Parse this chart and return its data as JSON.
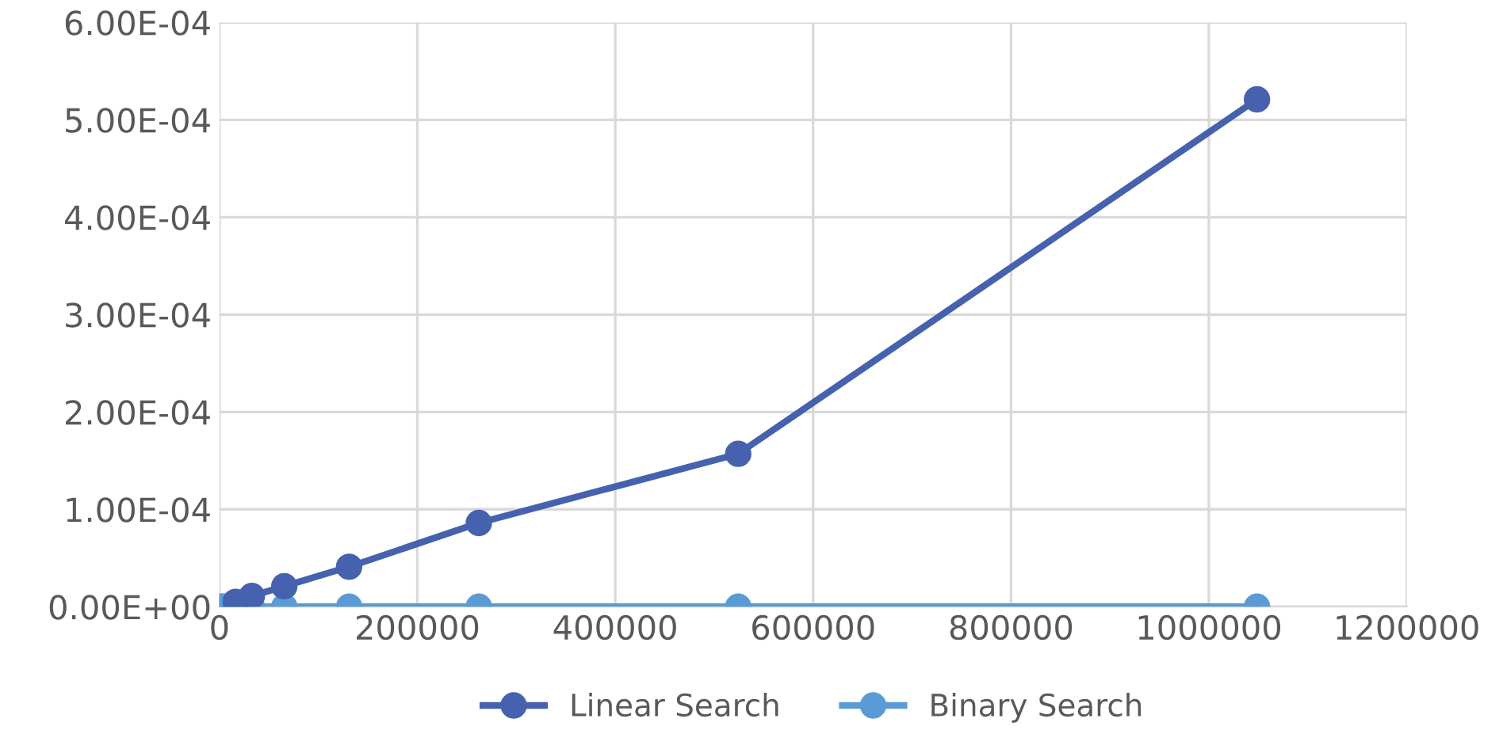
{
  "chart_data": {
    "type": "line",
    "x": [
      1024,
      2048,
      4096,
      8192,
      16384,
      32768,
      65536,
      131072,
      262144,
      524288,
      1048576
    ],
    "series": [
      {
        "name": "Linear Search",
        "color": "#4661ae",
        "values": [
          null,
          null,
          null,
          null,
          5e-06,
          1.1e-05,
          2.1e-05,
          4.1e-05,
          8.6e-05,
          0.000157,
          0.000521
        ]
      },
      {
        "name": "Binary Search",
        "color": "#5b9bd5",
        "values": [
          0,
          0,
          0,
          0,
          0,
          0,
          0,
          0,
          0,
          0,
          0
        ]
      }
    ],
    "xlim": [
      0,
      1200000
    ],
    "xticks": [
      0,
      200000,
      400000,
      600000,
      800000,
      1000000,
      1200000
    ],
    "ylim": [
      0,
      0.0006
    ],
    "yticks": [
      {
        "value": 0,
        "label": "0.00E+00"
      },
      {
        "value": 0.0001,
        "label": "1.00E-04"
      },
      {
        "value": 0.0002,
        "label": "2.00E-04"
      },
      {
        "value": 0.0003,
        "label": "3.00E-04"
      },
      {
        "value": 0.0004,
        "label": "4.00E-04"
      },
      {
        "value": 0.0005,
        "label": "5.00E-04"
      },
      {
        "value": 0.0006,
        "label": "6.00E-04"
      }
    ],
    "grid": true,
    "legend": "bottom",
    "marker": "circle",
    "line_style": "solid"
  }
}
